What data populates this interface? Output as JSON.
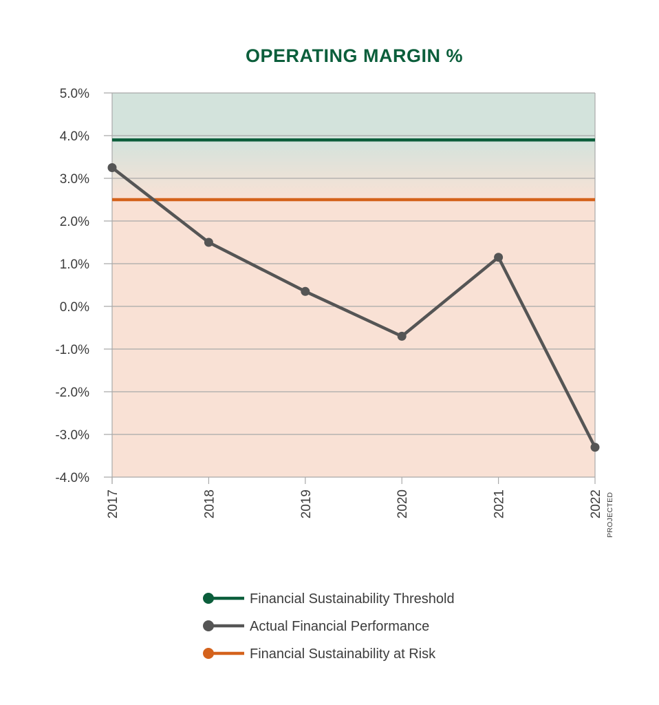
{
  "chart_data": {
    "type": "line",
    "title": "OPERATING MARGIN %",
    "title_color": "#0b5e3b",
    "x": [
      "2017",
      "2018",
      "2019",
      "2020",
      "2021",
      "2022"
    ],
    "x_sublabels": [
      "",
      "",
      "",
      "",
      "",
      "PROJECTED"
    ],
    "ylim": [
      -4.0,
      5.0
    ],
    "yticks": [
      "5.0%",
      "4.0%",
      "3.0%",
      "2.0%",
      "1.0%",
      "0.0%",
      "-1.0%",
      "-2.0%",
      "-3.0%",
      "-4.0%"
    ],
    "ytick_values": [
      5,
      4,
      3,
      2,
      1,
      0,
      -1,
      -2,
      -3,
      -4
    ],
    "grid": true,
    "legend_position": "bottom",
    "series": [
      {
        "name": "Actual Financial Performance",
        "color": "#555555",
        "values": [
          3.25,
          1.5,
          0.35,
          -0.7,
          1.15,
          -3.3
        ]
      }
    ],
    "reference_lines": [
      {
        "name": "Financial Sustainability Threshold",
        "color": "#0b5e3b",
        "value": 3.9
      },
      {
        "name": "Financial Sustainability at Risk",
        "color": "#d4621c",
        "value": 2.5
      }
    ],
    "legend": [
      {
        "label": "Financial Sustainability Threshold",
        "color": "#0b5e3b"
      },
      {
        "label": "Actual Financial Performance",
        "color": "#555555"
      },
      {
        "label": "Financial Sustainability at Risk",
        "color": "#d4621c"
      }
    ],
    "background_zones": {
      "safe_color": "#d3e3dc",
      "risk_color": "#f9e1d5"
    }
  }
}
